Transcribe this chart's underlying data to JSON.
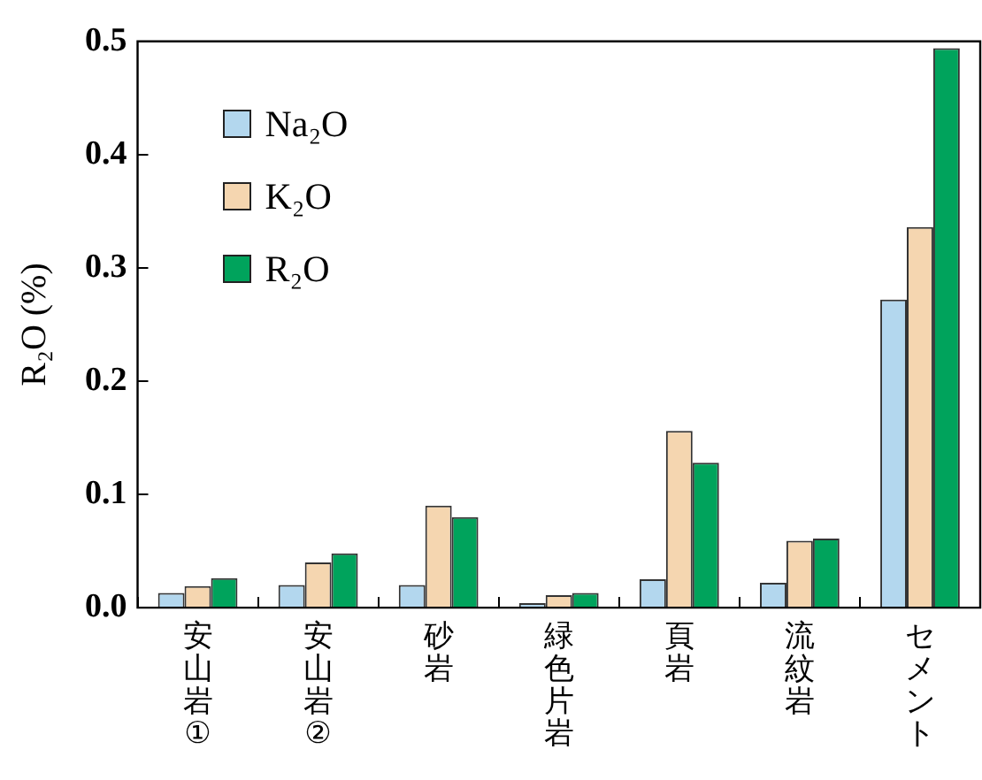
{
  "chart_data": {
    "type": "bar",
    "ylabel": "R₂O (%)",
    "categories": [
      "安山岩①",
      "安山岩②",
      "砂岩",
      "緑色片岩",
      "頁岩",
      "流紋岩",
      "セメント"
    ],
    "series": [
      {
        "name": "Na₂O",
        "color": "#b3d7ee",
        "values": [
          0.013,
          0.02,
          0.02,
          0.004,
          0.025,
          0.022,
          0.272
        ]
      },
      {
        "name": "K₂O",
        "color": "#f5d6b0",
        "values": [
          0.019,
          0.04,
          0.09,
          0.011,
          0.156,
          0.059,
          0.336
        ]
      },
      {
        "name": "R₂O",
        "color": "#00a35c",
        "values": [
          0.026,
          0.048,
          0.08,
          0.013,
          0.128,
          0.061,
          0.494
        ]
      }
    ],
    "ylim": [
      0,
      0.5
    ],
    "yticks": [
      {
        "value": 0,
        "label": "0.0"
      },
      {
        "value": 0.1,
        "label": "0.1"
      },
      {
        "value": 0.2,
        "label": "0.2"
      },
      {
        "value": 0.3,
        "label": "0.3"
      },
      {
        "value": 0.4,
        "label": "0.4"
      },
      {
        "value": 0.5,
        "label": "0.5"
      }
    ],
    "grid": false,
    "legend": "top left"
  }
}
